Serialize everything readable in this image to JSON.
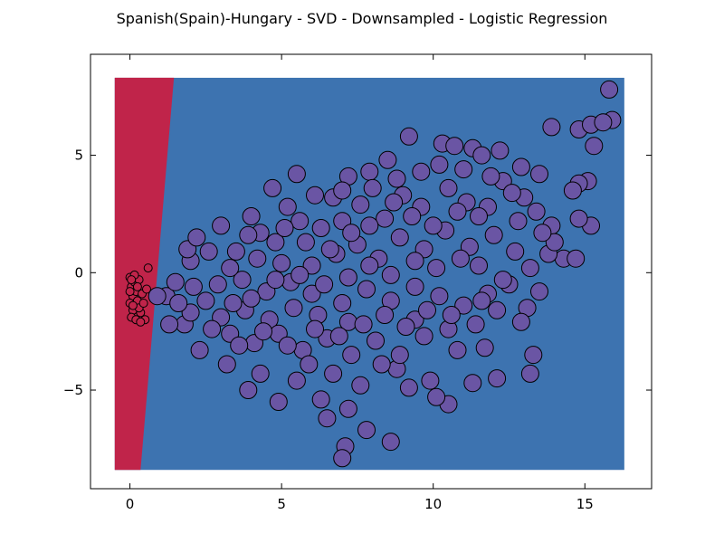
{
  "chart_data": {
    "type": "scatter",
    "title": "Spanish(Spain)-Hungary - SVD - Downsampled - Logistic Regression",
    "xlabel": "",
    "ylabel": "",
    "xlim": [
      -1.3,
      17.2
    ],
    "ylim": [
      -9.2,
      9.3
    ],
    "x_ticks": [
      0,
      5,
      10,
      15
    ],
    "y_ticks": [
      -5,
      0,
      5
    ],
    "x_tick_labels": [
      "0",
      "5",
      "10",
      "15"
    ],
    "y_tick_labels": [
      "−5",
      "0",
      "5"
    ],
    "grid": false,
    "decision_regions": {
      "extent_x": [
        -0.5,
        16.3
      ],
      "extent_y": [
        -8.4,
        8.3
      ],
      "boundary": [
        [
          1.45,
          8.3
        ],
        [
          0.35,
          -8.4
        ]
      ],
      "colors": {
        "class_0": "#c0244a",
        "class_1": "#3d73b0"
      }
    },
    "series": [
      {
        "class": "Hungary",
        "color": "#c0244a",
        "marker": "small-circle",
        "points": [
          [
            0.0,
            -0.2
          ],
          [
            0.05,
            -0.6
          ],
          [
            0.1,
            -1.0
          ],
          [
            0.0,
            -1.3
          ],
          [
            0.15,
            -0.4
          ],
          [
            0.2,
            -0.8
          ],
          [
            0.1,
            -1.6
          ],
          [
            0.25,
            -1.2
          ],
          [
            0.3,
            -0.3
          ],
          [
            0.05,
            -1.9
          ],
          [
            0.2,
            -2.0
          ],
          [
            0.35,
            -1.7
          ],
          [
            0.4,
            -0.9
          ],
          [
            0.15,
            -0.1
          ],
          [
            0.3,
            -1.5
          ],
          [
            0.45,
            -1.3
          ],
          [
            0.5,
            -2.0
          ],
          [
            0.0,
            -0.8
          ],
          [
            0.25,
            -0.6
          ],
          [
            0.6,
            0.2
          ],
          [
            0.55,
            -0.7
          ],
          [
            0.1,
            -1.4
          ],
          [
            0.35,
            -2.1
          ],
          [
            0.05,
            -0.3
          ]
        ]
      },
      {
        "class": "Spanish(Spain)",
        "color": "#6a55a4",
        "marker": "large-circle",
        "points": [
          [
            15.8,
            7.8
          ],
          [
            15.9,
            6.5
          ],
          [
            13.9,
            6.2
          ],
          [
            14.8,
            6.1
          ],
          [
            15.2,
            6.3
          ],
          [
            15.6,
            6.4
          ],
          [
            15.3,
            5.4
          ],
          [
            15.1,
            3.9
          ],
          [
            14.8,
            3.8
          ],
          [
            14.6,
            3.5
          ],
          [
            15.2,
            2.0
          ],
          [
            14.8,
            2.3
          ],
          [
            14.3,
            0.6
          ],
          [
            14.7,
            0.6
          ],
          [
            13.8,
            0.8
          ],
          [
            13.5,
            -0.8
          ],
          [
            13.1,
            -1.5
          ],
          [
            13.3,
            -3.5
          ],
          [
            13.2,
            -4.3
          ],
          [
            12.1,
            -4.5
          ],
          [
            11.3,
            -4.7
          ],
          [
            11.7,
            -3.2
          ],
          [
            10.5,
            -5.6
          ],
          [
            10.1,
            -5.3
          ],
          [
            9.9,
            -4.6
          ],
          [
            9.2,
            -4.9
          ],
          [
            8.8,
            -4.1
          ],
          [
            8.6,
            -7.2
          ],
          [
            7.8,
            -6.7
          ],
          [
            7.1,
            -7.4
          ],
          [
            7.0,
            -7.9
          ],
          [
            7.2,
            -5.8
          ],
          [
            6.5,
            -6.2
          ],
          [
            6.3,
            -5.4
          ],
          [
            5.5,
            -4.6
          ],
          [
            4.9,
            -5.5
          ],
          [
            3.9,
            -5.0
          ],
          [
            4.3,
            -4.3
          ],
          [
            3.2,
            -3.9
          ],
          [
            2.3,
            -3.3
          ],
          [
            1.8,
            -2.2
          ],
          [
            1.3,
            -2.2
          ],
          [
            1.2,
            -1.0
          ],
          [
            0.9,
            -1.0
          ],
          [
            1.5,
            -0.4
          ],
          [
            2.0,
            0.5
          ],
          [
            1.9,
            1.0
          ],
          [
            2.2,
            1.5
          ],
          [
            3.0,
            2.0
          ],
          [
            4.0,
            2.4
          ],
          [
            4.7,
            3.6
          ],
          [
            5.5,
            4.2
          ],
          [
            6.7,
            3.2
          ],
          [
            7.2,
            4.1
          ],
          [
            7.9,
            4.3
          ],
          [
            8.5,
            4.8
          ],
          [
            9.2,
            5.8
          ],
          [
            10.3,
            5.5
          ],
          [
            10.7,
            5.4
          ],
          [
            11.3,
            5.3
          ],
          [
            11.6,
            5.0
          ],
          [
            12.2,
            5.2
          ],
          [
            12.9,
            4.5
          ],
          [
            13.5,
            4.2
          ],
          [
            13.9,
            2.0
          ],
          [
            13.0,
            3.2
          ],
          [
            12.3,
            3.9
          ],
          [
            11.8,
            2.8
          ],
          [
            11.1,
            3.0
          ],
          [
            10.5,
            3.6
          ],
          [
            9.6,
            2.8
          ],
          [
            9.0,
            3.3
          ],
          [
            8.4,
            2.3
          ],
          [
            7.6,
            2.9
          ],
          [
            7.0,
            2.2
          ],
          [
            6.3,
            1.9
          ],
          [
            5.6,
            2.2
          ],
          [
            4.8,
            1.3
          ],
          [
            4.2,
            0.6
          ],
          [
            3.5,
            0.9
          ],
          [
            2.9,
            -0.5
          ],
          [
            3.7,
            -0.3
          ],
          [
            4.5,
            -0.8
          ],
          [
            5.3,
            -0.4
          ],
          [
            6.0,
            0.3
          ],
          [
            6.8,
            0.8
          ],
          [
            7.5,
            1.2
          ],
          [
            8.2,
            0.6
          ],
          [
            8.9,
            1.5
          ],
          [
            9.7,
            1.0
          ],
          [
            10.4,
            1.8
          ],
          [
            11.2,
            1.1
          ],
          [
            12.0,
            1.6
          ],
          [
            12.7,
            0.9
          ],
          [
            13.2,
            0.2
          ],
          [
            12.5,
            -0.5
          ],
          [
            11.8,
            -0.9
          ],
          [
            11.0,
            -1.4
          ],
          [
            10.2,
            -1.0
          ],
          [
            9.4,
            -0.6
          ],
          [
            8.6,
            -1.2
          ],
          [
            7.8,
            -0.7
          ],
          [
            7.0,
            -1.3
          ],
          [
            6.2,
            -1.8
          ],
          [
            5.4,
            -1.5
          ],
          [
            4.6,
            -2.0
          ],
          [
            3.8,
            -1.6
          ],
          [
            3.0,
            -1.9
          ],
          [
            2.5,
            -1.2
          ],
          [
            3.3,
            -2.6
          ],
          [
            4.1,
            -3.0
          ],
          [
            4.9,
            -2.6
          ],
          [
            5.7,
            -3.3
          ],
          [
            6.5,
            -2.8
          ],
          [
            7.3,
            -3.5
          ],
          [
            8.1,
            -2.9
          ],
          [
            8.9,
            -3.5
          ],
          [
            9.7,
            -2.7
          ],
          [
            10.5,
            -2.4
          ],
          [
            11.4,
            -2.2
          ],
          [
            12.1,
            -1.6
          ],
          [
            12.9,
            -2.1
          ],
          [
            6.7,
            -4.3
          ],
          [
            7.6,
            -4.8
          ],
          [
            8.3,
            -3.9
          ],
          [
            5.9,
            -3.9
          ],
          [
            9.4,
            -2.0
          ],
          [
            10.8,
            -3.3
          ],
          [
            7.2,
            -2.1
          ],
          [
            6.0,
            -0.9
          ],
          [
            5.0,
            0.4
          ],
          [
            4.3,
            1.7
          ],
          [
            5.2,
            2.8
          ],
          [
            6.1,
            3.3
          ],
          [
            7.0,
            3.5
          ],
          [
            8.0,
            3.6
          ],
          [
            8.8,
            4.0
          ],
          [
            9.6,
            4.3
          ],
          [
            10.2,
            4.6
          ],
          [
            11.0,
            4.4
          ],
          [
            11.9,
            4.1
          ],
          [
            12.6,
            3.4
          ],
          [
            13.4,
            2.6
          ],
          [
            14.0,
            1.3
          ],
          [
            13.6,
            1.7
          ],
          [
            12.8,
            2.2
          ],
          [
            11.5,
            2.4
          ],
          [
            10.8,
            2.6
          ],
          [
            10.0,
            2.0
          ],
          [
            9.3,
            2.4
          ],
          [
            8.7,
            3.0
          ],
          [
            7.9,
            2.0
          ],
          [
            7.3,
            1.7
          ],
          [
            6.6,
            1.0
          ],
          [
            5.8,
            1.3
          ],
          [
            5.1,
            1.9
          ],
          [
            3.9,
            1.6
          ],
          [
            3.3,
            0.2
          ],
          [
            2.6,
            0.9
          ],
          [
            2.1,
            -0.6
          ],
          [
            2.7,
            -2.4
          ],
          [
            3.6,
            -3.1
          ],
          [
            4.4,
            -2.5
          ],
          [
            5.2,
            -3.1
          ],
          [
            6.1,
            -2.4
          ],
          [
            6.9,
            -2.7
          ],
          [
            7.7,
            -2.2
          ],
          [
            8.4,
            -1.8
          ],
          [
            9.1,
            -2.3
          ],
          [
            9.8,
            -1.6
          ],
          [
            10.6,
            -1.8
          ],
          [
            11.6,
            -1.2
          ],
          [
            12.3,
            -0.3
          ],
          [
            11.5,
            0.3
          ],
          [
            10.9,
            0.6
          ],
          [
            10.1,
            0.2
          ],
          [
            9.4,
            0.5
          ],
          [
            8.6,
            -0.1
          ],
          [
            7.9,
            0.3
          ],
          [
            7.2,
            -0.2
          ],
          [
            6.4,
            -0.5
          ],
          [
            5.6,
            -0.1
          ],
          [
            4.8,
            -0.3
          ],
          [
            4.0,
            -1.1
          ],
          [
            3.4,
            -1.3
          ],
          [
            2.0,
            -1.7
          ],
          [
            1.6,
            -1.3
          ]
        ]
      }
    ]
  }
}
